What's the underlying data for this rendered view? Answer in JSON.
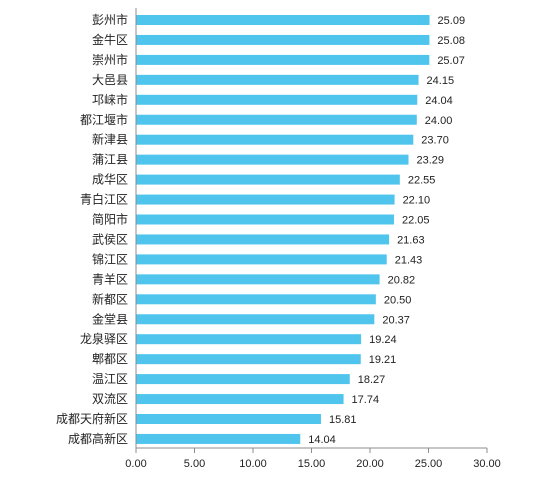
{
  "chart_data": {
    "type": "bar",
    "orientation": "horizontal",
    "title": "",
    "xlabel": "",
    "ylabel": "",
    "xlim": [
      0,
      30
    ],
    "x_ticks": [
      "0.00",
      "5.00",
      "10.00",
      "15.00",
      "20.00",
      "25.00",
      "30.00"
    ],
    "grid": false,
    "bar_color": "#4fc5ee",
    "categories": [
      "彭州市",
      "金牛区",
      "崇州市",
      "大邑县",
      "邛崃市",
      "都江堰市",
      "新津县",
      "蒲江县",
      "成华区",
      "青白江区",
      "简阳市",
      "武侯区",
      "锦江区",
      "青羊区",
      "新都区",
      "金堂县",
      "龙泉驿区",
      "郫都区",
      "温江区",
      "双流区",
      "成都天府新区",
      "成都高新区"
    ],
    "values": [
      25.09,
      25.08,
      25.07,
      24.15,
      24.04,
      24.0,
      23.7,
      23.29,
      22.55,
      22.1,
      22.05,
      21.63,
      21.43,
      20.82,
      20.5,
      20.37,
      19.24,
      19.21,
      18.27,
      17.74,
      15.81,
      14.04
    ],
    "value_labels": [
      "25.09",
      "25.08",
      "25.07",
      "24.15",
      "24.04",
      "24.00",
      "23.70",
      "23.29",
      "22.55",
      "22.10",
      "22.05",
      "21.63",
      "21.43",
      "20.82",
      "20.50",
      "20.37",
      "19.24",
      "19.21",
      "18.27",
      "17.74",
      "15.81",
      "14.04"
    ]
  }
}
